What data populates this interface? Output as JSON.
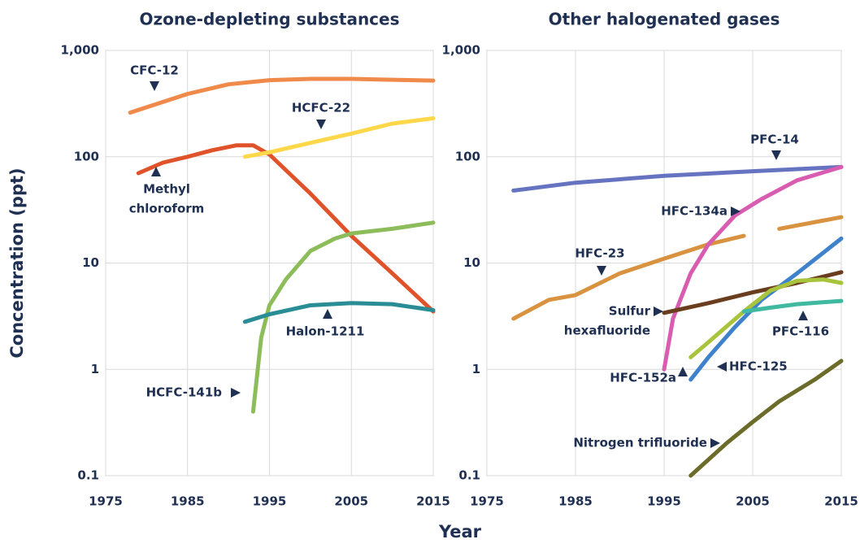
{
  "chart_data": [
    {
      "type": "line",
      "title": "Ozone-depleting substances",
      "ylabel": "Concentration (ppt)",
      "xlabel": "Year",
      "log_scale": true,
      "grid": true,
      "xlim": [
        1975,
        2015
      ],
      "xticks": [
        1975,
        1985,
        1995,
        2005,
        2015
      ],
      "ylim": [
        0.1,
        1000
      ],
      "yticks": [
        0.1,
        1,
        10,
        100,
        {
          "value": 1000,
          "label": "1,000"
        }
      ],
      "series": [
        {
          "name": "CFC-12",
          "color": "#f08a4b",
          "x": [
            1978,
            1985,
            1990,
            1995,
            2000,
            2005,
            2010,
            2015
          ],
          "values": [
            260,
            390,
            480,
            525,
            540,
            540,
            530,
            520
          ]
        },
        {
          "name": "Methyl chloroform",
          "color": "#e0532a",
          "x": [
            1979,
            1982,
            1985,
            1988,
            1991,
            1993,
            1995,
            2000,
            2005,
            2010,
            2015
          ],
          "values": [
            70,
            88,
            100,
            115,
            128,
            128,
            105,
            45,
            18,
            8,
            3.5
          ]
        },
        {
          "name": "HCFC-22",
          "color": "#ffd84a",
          "x": [
            1992,
            1995,
            2000,
            2005,
            2010,
            2015
          ],
          "values": [
            100,
            110,
            135,
            165,
            205,
            230
          ]
        },
        {
          "name": "HCFC-141b",
          "color": "#8cbd5a",
          "x": [
            1993,
            1994,
            1995,
            1997,
            2000,
            2003,
            2005,
            2010,
            2015
          ],
          "values": [
            0.4,
            2,
            4,
            7,
            13,
            17,
            19,
            21,
            24
          ]
        },
        {
          "name": "Halon-1211",
          "color": "#2a8d96",
          "x": [
            1992,
            1995,
            2000,
            2005,
            2010,
            2015
          ],
          "values": [
            2.8,
            3.3,
            4,
            4.2,
            4.1,
            3.6
          ]
        }
      ],
      "annotations": [
        {
          "lines": [
            "CFC-12"
          ]
        },
        {
          "lines": [
            "HCFC-22"
          ]
        },
        {
          "lines": [
            "Methyl",
            "chloroform"
          ]
        },
        {
          "lines": [
            "Halon-1211"
          ]
        },
        {
          "lines": [
            "HCFC-141b"
          ]
        }
      ]
    },
    {
      "type": "line",
      "title": "Other halogenated gases",
      "log_scale": true,
      "grid": true,
      "xlim": [
        1975,
        2015
      ],
      "xticks": [
        1975,
        1985,
        1995,
        2005,
        2015
      ],
      "ylim": [
        0.1,
        1000
      ],
      "yticks": [
        0.1,
        1,
        10,
        100,
        {
          "value": 1000,
          "label": "1,000"
        }
      ],
      "series": [
        {
          "name": "PFC-14",
          "color": "#6673c0",
          "x": [
            1978,
            1985,
            1995,
            2005,
            2015
          ],
          "values": [
            48,
            57,
            66,
            73,
            80
          ]
        },
        {
          "name": "HFC-23",
          "color": "#d99340",
          "x": [
            1978,
            1982,
            1985,
            1990,
            1995,
            2000,
            2004,
            2006,
            2008,
            2015
          ],
          "values": [
            3,
            4.5,
            5,
            8,
            11,
            15,
            18,
            null,
            21,
            27
          ]
        },
        {
          "name": "HFC-134a",
          "color": "#d85cb0",
          "x": [
            1995,
            1996,
            1998,
            2000,
            2003,
            2006,
            2010,
            2015
          ],
          "values": [
            1,
            3,
            8,
            15,
            28,
            40,
            60,
            80
          ]
        },
        {
          "name": "Sulfur hexafluoride",
          "color": "#6b3d1f",
          "x": [
            1995,
            2000,
            2005,
            2010,
            2015
          ],
          "values": [
            3.4,
            4.2,
            5.3,
            6.5,
            8.2
          ]
        },
        {
          "name": "HFC-125",
          "color": "#3e82cc",
          "x": [
            1998,
            2000,
            2003,
            2006,
            2010,
            2015
          ],
          "values": [
            0.8,
            1.3,
            2.5,
            4.5,
            8,
            17
          ]
        },
        {
          "name": "HFC-152a",
          "color": "#a8c43d",
          "x": [
            1998,
            2000,
            2004,
            2007,
            2010,
            2013,
            2015
          ],
          "values": [
            1.3,
            1.8,
            3.5,
            5.5,
            6.8,
            7,
            6.5
          ]
        },
        {
          "name": "PFC-116",
          "color": "#3fb9a0",
          "x": [
            2004,
            2007,
            2010,
            2015
          ],
          "values": [
            3.5,
            3.8,
            4.1,
            4.4
          ]
        },
        {
          "name": "Nitrogen trifluoride",
          "color": "#6b6b2a",
          "x": [
            1998,
            2002,
            2005,
            2008,
            2012,
            2015
          ],
          "values": [
            0.1,
            0.2,
            0.32,
            0.5,
            0.8,
            1.2
          ]
        }
      ],
      "annotations": [
        {
          "lines": [
            "PFC-14"
          ]
        },
        {
          "lines": [
            "HFC-134a"
          ]
        },
        {
          "lines": [
            "HFC-23"
          ]
        },
        {
          "lines": [
            "Sulfur",
            "hexafluoride"
          ]
        },
        {
          "lines": [
            "PFC-116"
          ]
        },
        {
          "lines": [
            "HFC-125"
          ]
        },
        {
          "lines": [
            "HFC-152a"
          ]
        },
        {
          "lines": [
            "Nitrogen trifluoride"
          ]
        }
      ]
    }
  ]
}
